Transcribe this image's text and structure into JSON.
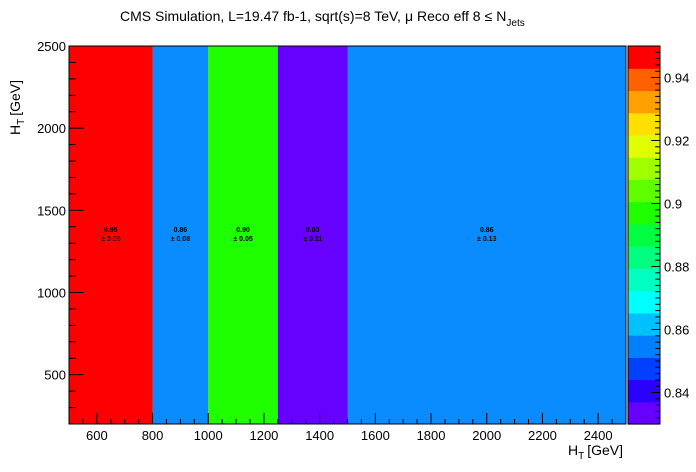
{
  "chart_data": {
    "type": "heatmap",
    "title": {
      "main": "CMS Simulation, L=19.47 fb-1, sqrt(s)=8 TeV,",
      "mu": "μ",
      "rest": "Reco eff 8",
      "leq": "≤",
      "n": "N",
      "n_sub": "Jets"
    },
    "xlabel": {
      "main": "H",
      "sub": "T",
      "unit": "[GeV]"
    },
    "ylabel": {
      "main": "H",
      "sub": "T",
      "unit": "[GeV]"
    },
    "xlim": [
      500,
      2500
    ],
    "ylim": [
      200,
      2500
    ],
    "x_ticks": [
      "600",
      "800",
      "1000",
      "1200",
      "1400",
      "1600",
      "1800",
      "2000",
      "2200",
      "2400"
    ],
    "y_ticks": [
      "500",
      "1000",
      "1500",
      "2000",
      "2500"
    ],
    "z_range": [
      0.83,
      0.95
    ],
    "z_ticks": [
      "0.84",
      "0.86",
      "0.88",
      "0.9",
      "0.92",
      "0.94"
    ],
    "palette": [
      "#6600ff",
      "#2a00ff",
      "#0040ff",
      "#0080ff",
      "#00c0ff",
      "#00ffff",
      "#00ffc0",
      "#00ff80",
      "#00ff40",
      "#20ff00",
      "#60ff00",
      "#a0ff00",
      "#e0ff00",
      "#ffe000",
      "#ffa000",
      "#ff6000",
      "#ff0000"
    ],
    "cells": [
      {
        "x_range": [
          500,
          800
        ],
        "y_range": [
          200,
          2500
        ],
        "value": "0.95",
        "error": "± 0.05",
        "color": "#ff0000"
      },
      {
        "x_range": [
          800,
          1000
        ],
        "y_range": [
          200,
          2500
        ],
        "value": "0.86",
        "error": "± 0.08",
        "color": "#0a8cff"
      },
      {
        "x_range": [
          1000,
          1250
        ],
        "y_range": [
          200,
          2500
        ],
        "value": "0.90",
        "error": "± 0.05",
        "color": "#20ff00"
      },
      {
        "x_range": [
          1250,
          1500
        ],
        "y_range": [
          200,
          2500
        ],
        "value": "0.83",
        "error": "± 0.11",
        "color": "#6600ff"
      },
      {
        "x_range": [
          1500,
          2500
        ],
        "y_range": [
          200,
          2500
        ],
        "value": "0.86",
        "error": "± 0.13",
        "color": "#0a8cff"
      }
    ],
    "label_y": 1350
  }
}
